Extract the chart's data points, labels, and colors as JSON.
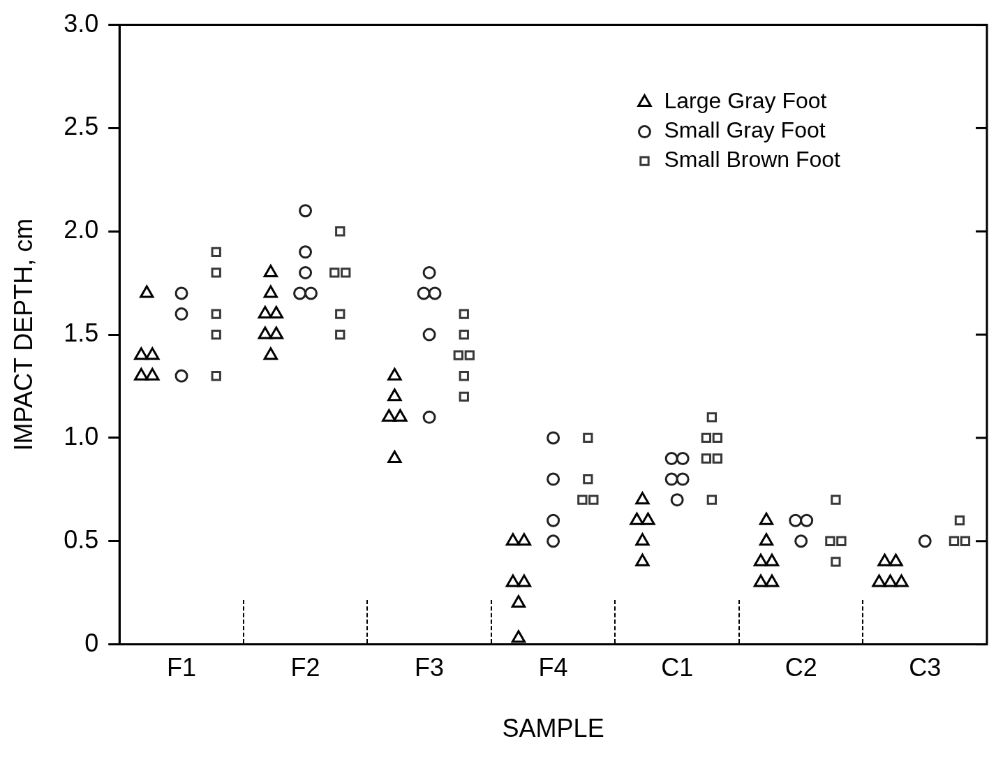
{
  "chart_data": {
    "type": "scatter",
    "xlabel": "SAMPLE",
    "ylabel": "IMPACT DEPTH, cm",
    "categories": [
      "F1",
      "F2",
      "F3",
      "F4",
      "C1",
      "C2",
      "C3"
    ],
    "ylim": [
      0,
      3
    ],
    "yticks": [
      0,
      0.5,
      {
        "value": 1,
        "label": "1.0"
      },
      1.5,
      {
        "value": 2,
        "label": "2.0"
      },
      2.5,
      {
        "value": 3,
        "label": "3.0"
      }
    ],
    "grid": false,
    "legend": "top right",
    "series": [
      {
        "name": "Large Gray Foot",
        "color": "#000000",
        "marker": "triangle",
        "x": [
          "F1",
          "F1",
          "F1",
          "F1",
          "F1",
          "F2",
          "F2",
          "F2",
          "F2",
          "F2",
          "F2",
          "F2",
          "F3",
          "F3",
          "F3",
          "F3",
          "F3",
          "F4",
          "F4",
          "F4",
          "F4",
          "F4",
          "F4",
          "C1",
          "C1",
          "C1",
          "C1",
          "C1",
          "C2",
          "C2",
          "C2",
          "C2",
          "C2",
          "C2",
          "C3",
          "C3",
          "C3",
          "C3",
          "C3"
        ],
        "values": [
          1.7,
          1.3,
          1.4,
          1.4,
          1.3,
          1.8,
          1.6,
          1.7,
          1.6,
          1.5,
          1.5,
          1.4,
          1.3,
          1.2,
          1.1,
          1.1,
          0.9,
          0.3,
          0.03,
          0.5,
          0.3,
          0.5,
          0.2,
          0.6,
          0.4,
          0.6,
          0.5,
          0.7,
          0.4,
          0.4,
          0.3,
          0.6,
          0.5,
          0.3,
          0.4,
          0.3,
          0.3,
          0.4,
          0.3
        ]
      },
      {
        "name": "Small Gray Foot",
        "color": "#202020",
        "marker": "circle",
        "x": [
          "F1",
          "F1",
          "F1",
          "F2",
          "F2",
          "F2",
          "F2",
          "F2",
          "F3",
          "F3",
          "F3",
          "F3",
          "F3",
          "F4",
          "F4",
          "F4",
          "F4",
          "C1",
          "C1",
          "C1",
          "C1",
          "C1",
          "C2",
          "C2",
          "C2",
          "C3"
        ],
        "values": [
          1.7,
          1.6,
          1.3,
          2.1,
          1.8,
          1.7,
          1.9,
          1.7,
          1.8,
          1.7,
          1.1,
          1.7,
          1.5,
          0.6,
          0.5,
          1.0,
          0.8,
          0.9,
          0.7,
          0.9,
          0.8,
          0.8,
          0.6,
          0.5,
          0.6,
          0.5
        ]
      },
      {
        "name": "Small Brown Foot",
        "color": "#383838",
        "marker": "square",
        "x": [
          "F1",
          "F1",
          "F1",
          "F1",
          "F1",
          "F2",
          "F2",
          "F2",
          "F2",
          "F2",
          "F3",
          "F3",
          "F3",
          "F3",
          "F3",
          "F3",
          "F4",
          "F4",
          "F4",
          "F4",
          "C1",
          "C1",
          "C1",
          "C1",
          "C1",
          "C1",
          "C2",
          "C2",
          "C2",
          "C2",
          "C3",
          "C3",
          "C3"
        ],
        "values": [
          1.9,
          1.8,
          1.6,
          1.3,
          1.5,
          2.0,
          1.8,
          1.6,
          1.8,
          1.5,
          1.6,
          1.4,
          1.5,
          1.4,
          1.3,
          1.2,
          0.8,
          1.0,
          0.7,
          0.7,
          1.1,
          1.0,
          1.0,
          0.9,
          0.9,
          0.7,
          0.7,
          0.5,
          0.5,
          0.4,
          0.6,
          0.5,
          0.5
        ]
      }
    ]
  }
}
